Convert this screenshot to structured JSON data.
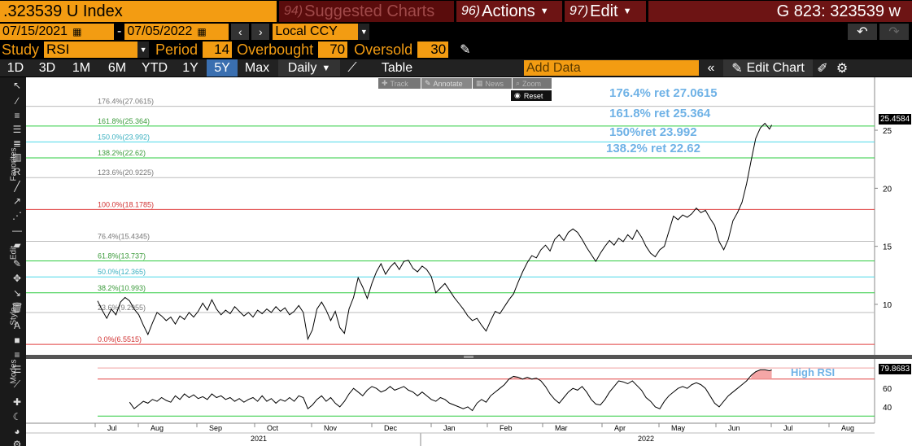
{
  "header": {
    "ticker": ".323539 U Index",
    "suggested_num": "94)",
    "suggested_label": "Suggested Charts",
    "actions_num": "96)",
    "actions_label": "Actions",
    "edit_num": "97)",
    "edit_label": "Edit",
    "right_title": "G 823: 323539 w"
  },
  "daterange": {
    "start": "07/15/2021",
    "sep": "-",
    "end": "07/05/2022",
    "currency": "Local CCY"
  },
  "study": {
    "label": "Study",
    "value": "RSI",
    "period_label": "Period",
    "period_value": "14",
    "overbought_label": "Overbought",
    "overbought_value": "70",
    "oversold_label": "Oversold",
    "oversold_value": "30"
  },
  "timeframes": [
    "1D",
    "3D",
    "1M",
    "6M",
    "YTD",
    "1Y",
    "5Y",
    "Max"
  ],
  "selected_timeframe": "5Y",
  "period_select": "Daily",
  "table_label": "Table",
  "add_data_placeholder": "Add Data",
  "edit_chart_label": "Edit Chart",
  "toolbar_labels": {
    "favorites": "Favorites",
    "edit": "Edit",
    "style": "Style",
    "modes": "Modes"
  },
  "overlay": {
    "track": "Track",
    "annotate": "Annotate",
    "news": "News",
    "zoom": "Zoom",
    "reset": "Reset"
  },
  "fib_levels": [
    {
      "label": "176.4%(27.0615)",
      "value": 27.0615,
      "color": "#bbbbbb",
      "text_color": "#777777"
    },
    {
      "label": "161.8%(25.364)",
      "value": 25.364,
      "color": "#2ecc40",
      "text_color": "#3a9a3a"
    },
    {
      "label": "150.0%(23.992)",
      "value": 23.992,
      "color": "#4dd9e8",
      "text_color": "#3ab0c0"
    },
    {
      "label": "138.2%(22.62)",
      "value": 22.62,
      "color": "#2ecc40",
      "text_color": "#3a9a3a"
    },
    {
      "label": "123.6%(20.9225)",
      "value": 20.9225,
      "color": "#bbbbbb",
      "text_color": "#777777"
    },
    {
      "label": "100.0%(18.1785)",
      "value": 18.1785,
      "color": "#e04040",
      "text_color": "#d03030"
    },
    {
      "label": "76.4%(15.4345)",
      "value": 15.4345,
      "color": "#bbbbbb",
      "text_color": "#777777"
    },
    {
      "label": "61.8%(13.737)",
      "value": 13.737,
      "color": "#2ecc40",
      "text_color": "#3a9a3a"
    },
    {
      "label": "50.0%(12.365)",
      "value": 12.365,
      "color": "#4dd9e8",
      "text_color": "#3ab0c0"
    },
    {
      "label": "38.2%(10.993)",
      "value": 10.993,
      "color": "#2ecc40",
      "text_color": "#3a9a3a"
    },
    {
      "label": "23.6%(9.2955)",
      "value": 9.2955,
      "color": "#bbbbbb",
      "text_color": "#777777"
    },
    {
      "label": "0.0%(6.5515)",
      "value": 6.5515,
      "color": "#e04040",
      "text_color": "#d03030"
    }
  ],
  "annotations": [
    "176.4% ret 27.0615",
    "161.8% ret 25.364",
    "150%ret 23.992",
    "138.2% ret 22.62"
  ],
  "rsi_label": "High RSI",
  "last_price_label": "25.4584",
  "last_rsi_label": "79.8683",
  "chart_data": {
    "type": "line",
    "price_axis": {
      "ticks": [
        10,
        15,
        20,
        25
      ],
      "range": [
        6.0,
        29.0
      ]
    },
    "rsi_axis": {
      "ticks": [
        40,
        60
      ],
      "range": [
        25,
        90
      ],
      "overbought": 70,
      "oversold": 30
    },
    "x_months": [
      "Jul",
      "Aug",
      "Sep",
      "Oct",
      "Nov",
      "Dec",
      "Jan",
      "Feb",
      "Mar",
      "Apr",
      "May",
      "Jun",
      "Jul",
      "Aug"
    ],
    "years": [
      "2021",
      "2022"
    ],
    "series_price": [
      [
        0,
        10.3
      ],
      [
        2,
        9.5
      ],
      [
        4,
        8.8
      ],
      [
        6,
        9.6
      ],
      [
        8,
        9.1
      ],
      [
        10,
        10.2
      ],
      [
        12,
        10.6
      ],
      [
        14,
        10.3
      ],
      [
        16,
        9.6
      ],
      [
        18,
        9.1
      ],
      [
        20,
        8.2
      ],
      [
        22,
        7.4
      ],
      [
        24,
        8.4
      ],
      [
        26,
        9.3
      ],
      [
        28,
        9.0
      ],
      [
        30,
        8.6
      ],
      [
        32,
        8.9
      ],
      [
        34,
        8.3
      ],
      [
        36,
        9.0
      ],
      [
        38,
        8.7
      ],
      [
        40,
        9.3
      ],
      [
        42,
        8.9
      ],
      [
        44,
        9.4
      ],
      [
        46,
        10.1
      ],
      [
        48,
        9.5
      ],
      [
        50,
        10.4
      ],
      [
        52,
        9.6
      ],
      [
        54,
        9.1
      ],
      [
        56,
        9.5
      ],
      [
        58,
        9.2
      ],
      [
        60,
        9.8
      ],
      [
        62,
        9.4
      ],
      [
        64,
        9.0
      ],
      [
        66,
        9.3
      ],
      [
        68,
        8.9
      ],
      [
        70,
        9.5
      ],
      [
        72,
        9.2
      ],
      [
        74,
        9.6
      ],
      [
        76,
        9.3
      ],
      [
        78,
        9.8
      ],
      [
        80,
        9.4
      ],
      [
        82,
        9.7
      ],
      [
        84,
        9.1
      ],
      [
        86,
        9.4
      ],
      [
        88,
        9.9
      ],
      [
        90,
        9.3
      ],
      [
        92,
        7.0
      ],
      [
        94,
        7.8
      ],
      [
        96,
        9.6
      ],
      [
        98,
        10.2
      ],
      [
        100,
        9.5
      ],
      [
        102,
        8.6
      ],
      [
        104,
        9.4
      ],
      [
        106,
        8.0
      ],
      [
        108,
        7.5
      ],
      [
        110,
        9.6
      ],
      [
        112,
        10.6
      ],
      [
        114,
        12.3
      ],
      [
        116,
        11.5
      ],
      [
        118,
        10.5
      ],
      [
        120,
        11.8
      ],
      [
        122,
        12.8
      ],
      [
        124,
        13.5
      ],
      [
        126,
        12.6
      ],
      [
        128,
        13.2
      ],
      [
        130,
        13.6
      ],
      [
        132,
        13.0
      ],
      [
        134,
        13.7
      ],
      [
        136,
        13.8
      ],
      [
        138,
        13.1
      ],
      [
        140,
        12.8
      ],
      [
        142,
        13.3
      ],
      [
        144,
        13.0
      ],
      [
        146,
        12.4
      ],
      [
        148,
        11.0
      ],
      [
        150,
        11.4
      ],
      [
        152,
        11.8
      ],
      [
        154,
        11.2
      ],
      [
        156,
        10.6
      ],
      [
        158,
        10.1
      ],
      [
        160,
        9.6
      ],
      [
        162,
        9.0
      ],
      [
        164,
        8.6
      ],
      [
        166,
        8.8
      ],
      [
        168,
        8.2
      ],
      [
        170,
        7.7
      ],
      [
        172,
        8.6
      ],
      [
        174,
        9.4
      ],
      [
        176,
        9.2
      ],
      [
        178,
        9.8
      ],
      [
        180,
        10.4
      ],
      [
        182,
        10.9
      ],
      [
        184,
        11.9
      ],
      [
        186,
        12.8
      ],
      [
        188,
        13.6
      ],
      [
        190,
        14.2
      ],
      [
        192,
        14.0
      ],
      [
        194,
        14.7
      ],
      [
        196,
        15.1
      ],
      [
        198,
        14.6
      ],
      [
        200,
        15.6
      ],
      [
        202,
        16.0
      ],
      [
        204,
        15.5
      ],
      [
        206,
        16.2
      ],
      [
        208,
        16.5
      ],
      [
        210,
        16.2
      ],
      [
        212,
        15.6
      ],
      [
        214,
        14.9
      ],
      [
        216,
        14.3
      ],
      [
        218,
        13.7
      ],
      [
        220,
        14.4
      ],
      [
        222,
        15.0
      ],
      [
        224,
        15.5
      ],
      [
        226,
        15.1
      ],
      [
        228,
        15.7
      ],
      [
        230,
        15.4
      ],
      [
        232,
        16.0
      ],
      [
        234,
        15.6
      ],
      [
        236,
        16.4
      ],
      [
        238,
        15.8
      ],
      [
        240,
        15.0
      ],
      [
        242,
        14.4
      ],
      [
        244,
        14.1
      ],
      [
        246,
        14.7
      ],
      [
        248,
        15.0
      ],
      [
        250,
        16.3
      ],
      [
        252,
        17.6
      ],
      [
        254,
        17.3
      ],
      [
        256,
        17.7
      ],
      [
        258,
        17.5
      ],
      [
        260,
        17.8
      ],
      [
        262,
        18.3
      ],
      [
        264,
        17.9
      ],
      [
        266,
        18.1
      ],
      [
        268,
        17.4
      ],
      [
        270,
        16.8
      ],
      [
        272,
        15.4
      ],
      [
        274,
        14.7
      ],
      [
        276,
        15.6
      ],
      [
        278,
        17.2
      ],
      [
        280,
        17.9
      ],
      [
        282,
        18.8
      ],
      [
        284,
        20.4
      ],
      [
        286,
        22.4
      ],
      [
        288,
        24.3
      ],
      [
        290,
        25.2
      ],
      [
        292,
        25.6
      ],
      [
        294,
        25.1
      ],
      [
        295,
        25.46
      ]
    ],
    "series_rsi": [
      [
        14,
        45
      ],
      [
        16,
        38
      ],
      [
        18,
        42
      ],
      [
        20,
        46
      ],
      [
        22,
        44
      ],
      [
        24,
        48
      ],
      [
        26,
        46
      ],
      [
        28,
        50
      ],
      [
        30,
        47
      ],
      [
        32,
        45
      ],
      [
        34,
        52
      ],
      [
        36,
        48
      ],
      [
        38,
        54
      ],
      [
        40,
        50
      ],
      [
        42,
        53
      ],
      [
        44,
        49
      ],
      [
        46,
        51
      ],
      [
        48,
        48
      ],
      [
        50,
        54
      ],
      [
        52,
        50
      ],
      [
        54,
        52
      ],
      [
        56,
        48
      ],
      [
        58,
        50
      ],
      [
        60,
        46
      ],
      [
        62,
        49
      ],
      [
        64,
        45
      ],
      [
        66,
        48
      ],
      [
        68,
        50
      ],
      [
        70,
        46
      ],
      [
        72,
        52
      ],
      [
        74,
        46
      ],
      [
        76,
        49
      ],
      [
        78,
        44
      ],
      [
        80,
        48
      ],
      [
        82,
        46
      ],
      [
        84,
        50
      ],
      [
        86,
        46
      ],
      [
        88,
        52
      ],
      [
        90,
        50
      ],
      [
        92,
        38
      ],
      [
        94,
        42
      ],
      [
        96,
        48
      ],
      [
        98,
        52
      ],
      [
        100,
        46
      ],
      [
        102,
        50
      ],
      [
        104,
        44
      ],
      [
        106,
        40
      ],
      [
        108,
        46
      ],
      [
        110,
        54
      ],
      [
        112,
        60
      ],
      [
        114,
        56
      ],
      [
        116,
        52
      ],
      [
        118,
        58
      ],
      [
        120,
        62
      ],
      [
        122,
        60
      ],
      [
        124,
        56
      ],
      [
        126,
        58
      ],
      [
        128,
        62
      ],
      [
        130,
        58
      ],
      [
        132,
        60
      ],
      [
        134,
        62
      ],
      [
        136,
        58
      ],
      [
        138,
        56
      ],
      [
        140,
        52
      ],
      [
        142,
        56
      ],
      [
        144,
        52
      ],
      [
        146,
        48
      ],
      [
        148,
        46
      ],
      [
        150,
        50
      ],
      [
        152,
        48
      ],
      [
        154,
        44
      ],
      [
        156,
        42
      ],
      [
        158,
        40
      ],
      [
        160,
        38
      ],
      [
        162,
        40
      ],
      [
        164,
        36
      ],
      [
        166,
        44
      ],
      [
        168,
        48
      ],
      [
        170,
        45
      ],
      [
        172,
        52
      ],
      [
        174,
        56
      ],
      [
        176,
        60
      ],
      [
        178,
        64
      ],
      [
        180,
        70
      ],
      [
        182,
        73
      ],
      [
        184,
        72
      ],
      [
        186,
        70
      ],
      [
        188,
        72
      ],
      [
        190,
        70
      ],
      [
        192,
        71
      ],
      [
        194,
        68
      ],
      [
        196,
        62
      ],
      [
        198,
        54
      ],
      [
        200,
        48
      ],
      [
        202,
        44
      ],
      [
        204,
        50
      ],
      [
        206,
        56
      ],
      [
        208,
        60
      ],
      [
        210,
        58
      ],
      [
        212,
        62
      ],
      [
        214,
        56
      ],
      [
        216,
        48
      ],
      [
        218,
        43
      ],
      [
        220,
        42
      ],
      [
        222,
        48
      ],
      [
        224,
        56
      ],
      [
        226,
        62
      ],
      [
        228,
        68
      ],
      [
        230,
        67
      ],
      [
        232,
        65
      ],
      [
        234,
        68
      ],
      [
        236,
        63
      ],
      [
        238,
        58
      ],
      [
        240,
        50
      ],
      [
        242,
        46
      ],
      [
        244,
        40
      ],
      [
        246,
        38
      ],
      [
        248,
        46
      ],
      [
        250,
        52
      ],
      [
        252,
        56
      ],
      [
        254,
        60
      ],
      [
        256,
        62
      ],
      [
        258,
        60
      ],
      [
        260,
        64
      ],
      [
        262,
        66
      ],
      [
        264,
        64
      ],
      [
        266,
        60
      ],
      [
        268,
        52
      ],
      [
        270,
        44
      ],
      [
        272,
        40
      ],
      [
        274,
        46
      ],
      [
        276,
        52
      ],
      [
        278,
        56
      ],
      [
        280,
        60
      ],
      [
        282,
        64
      ],
      [
        284,
        68
      ],
      [
        286,
        74
      ],
      [
        288,
        78
      ],
      [
        290,
        80
      ],
      [
        292,
        80
      ],
      [
        294,
        79
      ],
      [
        295,
        79.87
      ]
    ]
  }
}
